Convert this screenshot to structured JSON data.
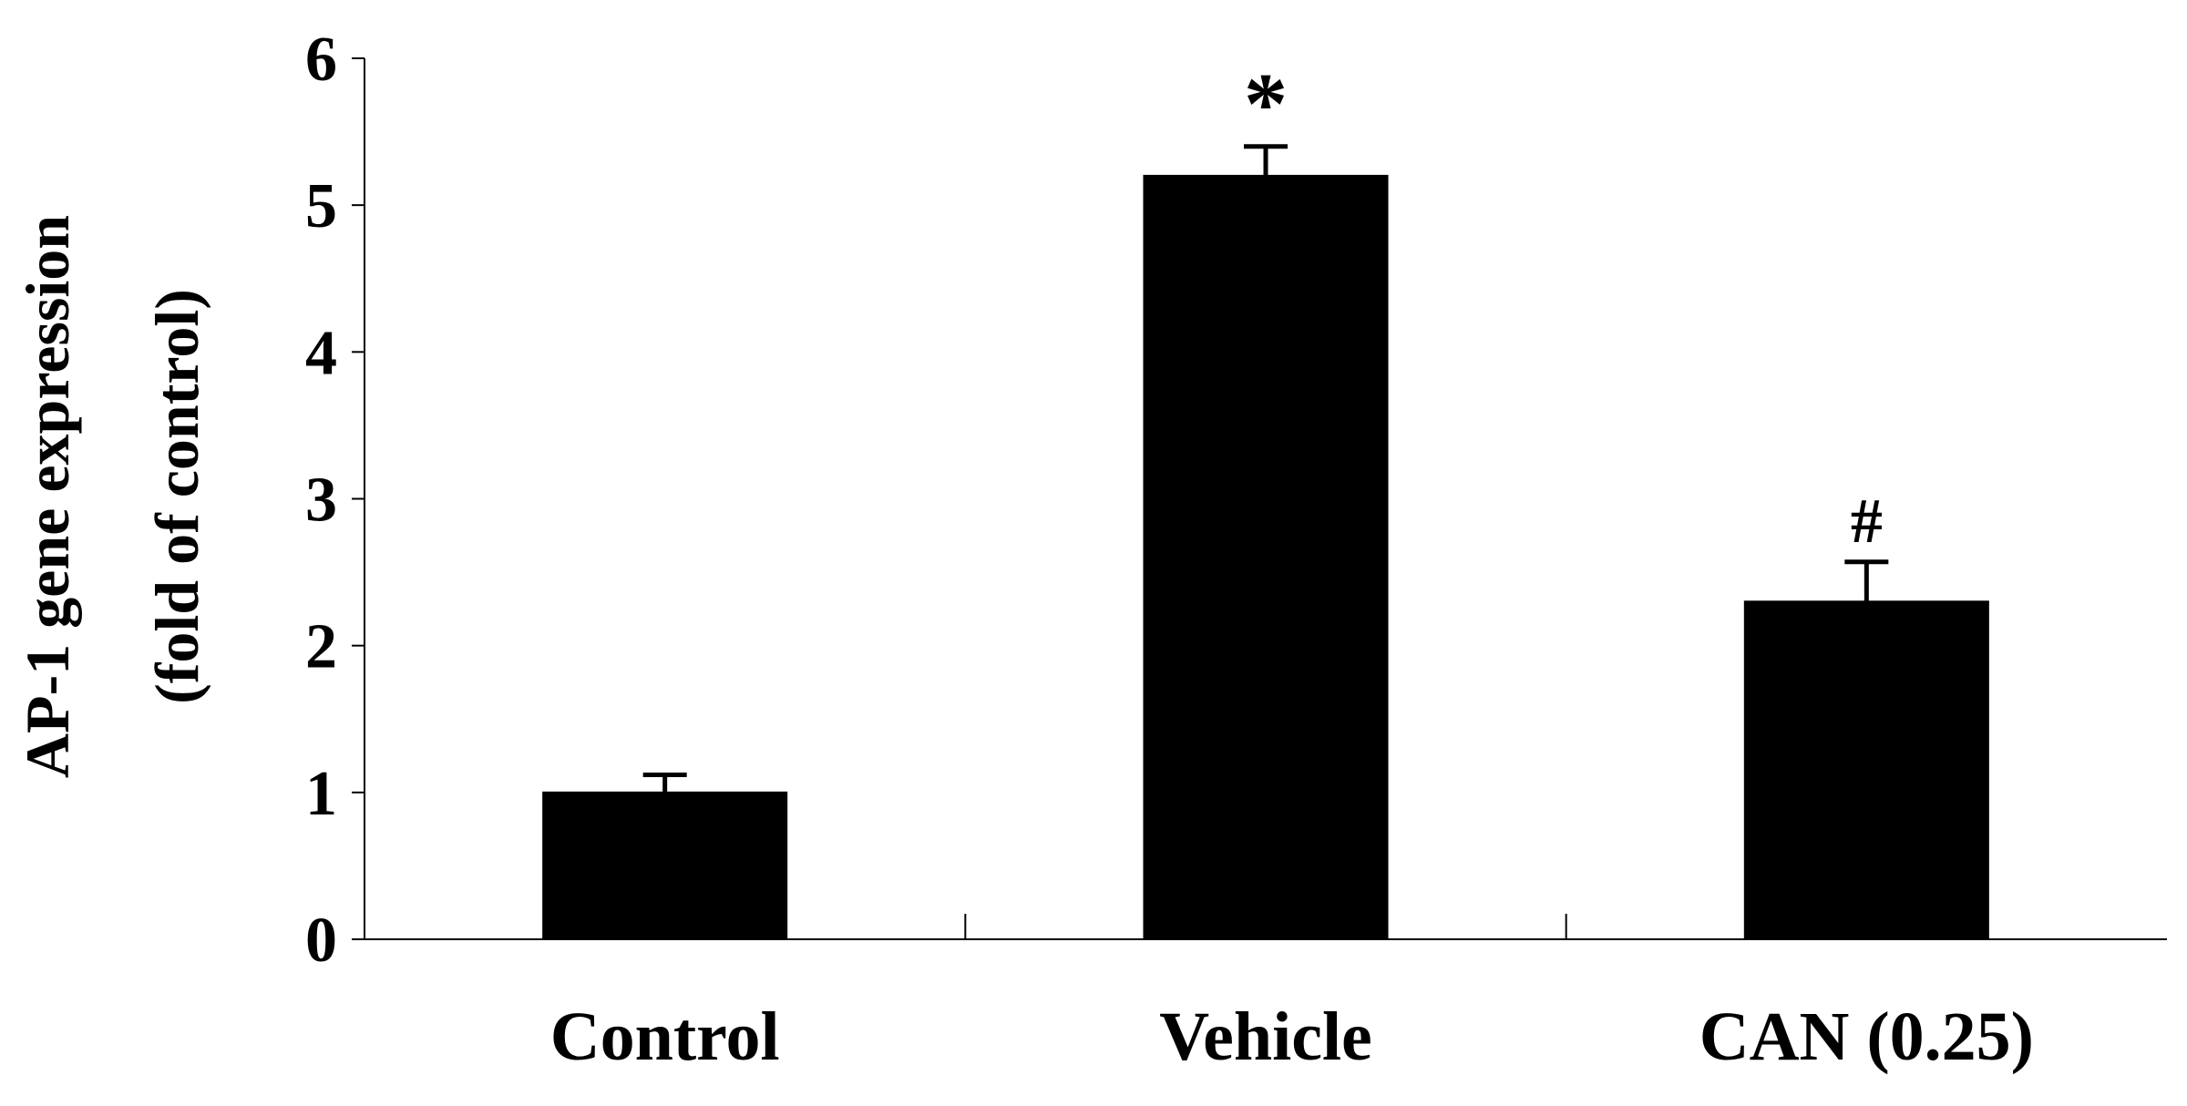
{
  "chart_data": {
    "type": "bar",
    "title": "",
    "ylabel_line1": "AP-1 gene expression",
    "ylabel_line2": "(fold of control)",
    "xlabel": "",
    "categories": [
      "Control",
      "Vehicle",
      "CAN (0.25)"
    ],
    "values": [
      1.0,
      5.2,
      2.3
    ],
    "error": [
      0.12,
      0.2,
      0.27
    ],
    "annotations": [
      "",
      "*",
      "#"
    ],
    "ylim": [
      0,
      6
    ],
    "yticks": [
      "0",
      "1",
      "2",
      "3",
      "4",
      "5",
      "6"
    ],
    "grid": false,
    "legend": "none",
    "bar_color": "#000000"
  }
}
